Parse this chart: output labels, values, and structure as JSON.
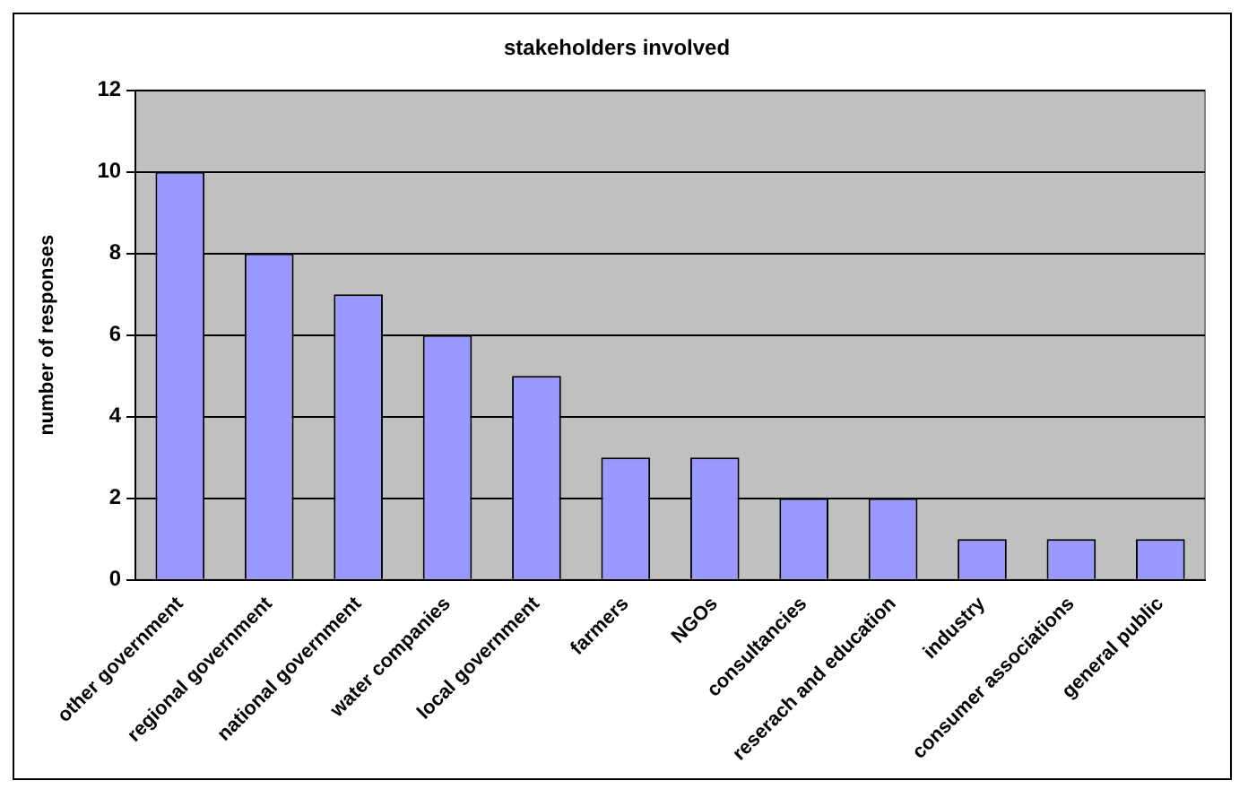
{
  "chart_data": {
    "type": "bar",
    "title": "stakeholders involved",
    "ylabel": "number of responses",
    "categories": [
      "other government",
      "regional government",
      "national government",
      "water companies",
      "local government",
      "farmers",
      "NGOs",
      "consultancies",
      "reserach and education",
      "industry",
      "consumer associations",
      "general public"
    ],
    "values": [
      10,
      8,
      7,
      6,
      5,
      3,
      3,
      2,
      2,
      1,
      1,
      1
    ],
    "color": "#9999ff",
    "ylim": [
      0,
      12
    ],
    "yticks": [
      0,
      2,
      4,
      6,
      8,
      10,
      12
    ],
    "grid": "y"
  }
}
